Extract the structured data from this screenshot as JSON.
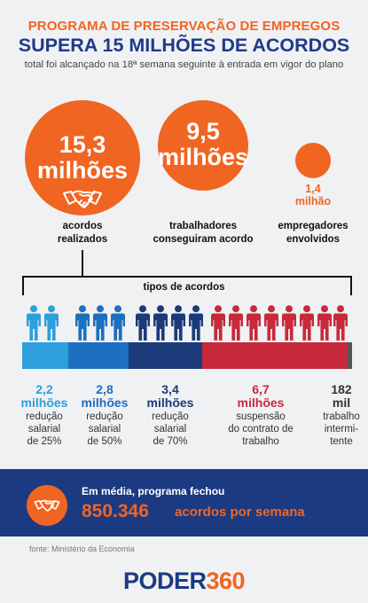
{
  "header": {
    "pretitle": "PROGRAMA DE PRESERVAÇÃO DE EMPREGOS",
    "title": "SUPERA 15 MILHÕES DE ACORDOS",
    "subtitle": "total foi alcançado na 18ª semana seguinte à entrada em vigor do plano"
  },
  "stats": [
    {
      "num": "15,3",
      "unit": "milhões",
      "label_1": "acordos",
      "label_2": "realizados"
    },
    {
      "num": "9,5",
      "unit": "milhões",
      "label_1": "trabalhadores",
      "label_2": "conseguiram acordo"
    },
    {
      "num": "1,4",
      "unit": "milhão",
      "label_1": "empregadores",
      "label_2": "envolvidos"
    }
  ],
  "types_label": "tipos de acordos",
  "types": [
    {
      "num": "2,2",
      "unit": "milhões",
      "desc": [
        "redução",
        "salarial",
        "de 25%"
      ],
      "color": "#2d9fdd",
      "people": 2
    },
    {
      "num": "2,8",
      "unit": "milhões",
      "desc": [
        "redução",
        "salarial",
        "de 50%"
      ],
      "color": "#1d6fbf",
      "people": 3
    },
    {
      "num": "3,4",
      "unit": "milhões",
      "desc": [
        "redução",
        "salarial",
        "de 70%"
      ],
      "color": "#1b3a7a",
      "people": 4
    },
    {
      "num": "6,7",
      "unit": "milhões",
      "desc": [
        "suspensão",
        "do contrato de",
        "trabalho"
      ],
      "color": "#c8293b",
      "people": 8
    },
    {
      "num": "182",
      "unit": "mil",
      "desc": [
        "trabalho",
        "intermi-",
        "tente"
      ],
      "color": "#555555",
      "people": 0
    }
  ],
  "banner": {
    "line1": "Em média, programa fechou",
    "number": "850.346",
    "rest": "acordos por semana"
  },
  "source": "fonte: Ministério da Economia",
  "logo": {
    "part1": "PODER",
    "part2": "360"
  },
  "colors": {
    "orange": "#f06522",
    "navy": "#1b3a82",
    "background": "#f0f1f3"
  },
  "icons": [
    "handshake-icon",
    "person-icon"
  ]
}
